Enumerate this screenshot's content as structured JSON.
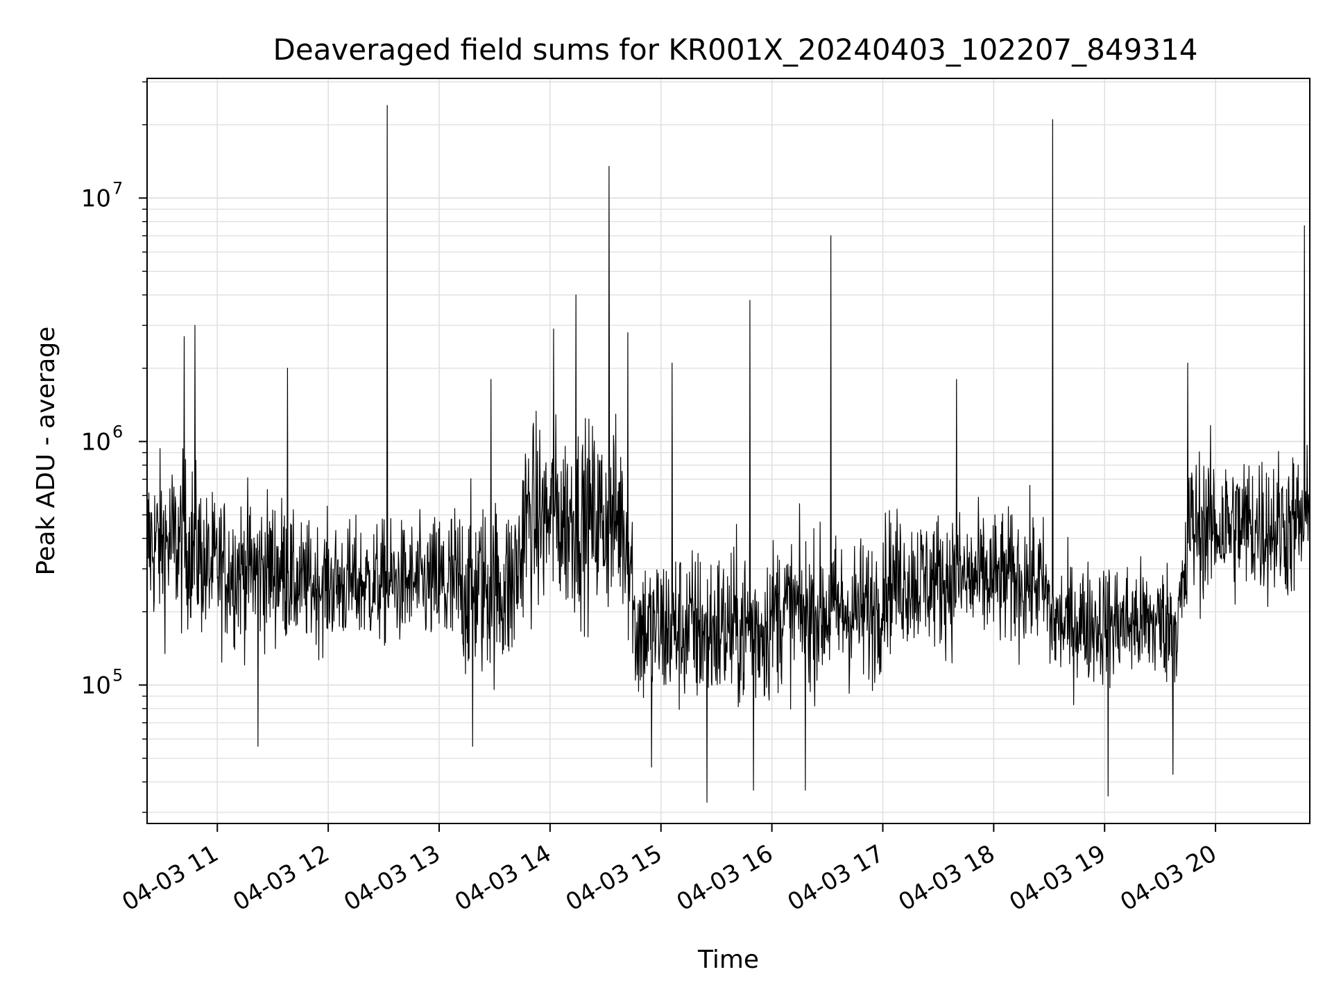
{
  "chart_data": {
    "type": "line",
    "title": "Deaveraged field sums for KR001X_20240403_102207_849314",
    "xlabel": "Time",
    "ylabel": "Peak ADU - average",
    "x_range": [
      "04-03 10:22",
      "04-03 20:51"
    ],
    "x_ticks": [
      "04-03 11",
      "04-03 12",
      "04-03 13",
      "04-03 14",
      "04-03 15",
      "04-03 16",
      "04-03 17",
      "04-03 18",
      "04-03 19",
      "04-03 20"
    ],
    "y_scale": "log",
    "y_range": [
      27000,
      31000000
    ],
    "y_ticks": [
      {
        "base": "10",
        "exp": "5",
        "value": 100000
      },
      {
        "base": "10",
        "exp": "6",
        "value": 1000000
      },
      {
        "base": "10",
        "exp": "7",
        "value": 10000000
      }
    ],
    "grid": true,
    "line_color": "#000000",
    "segments": [
      {
        "start": "04-03 10:22",
        "end": "04-03 10:52",
        "level": 380000,
        "spread": 0.62
      },
      {
        "start": "04-03 10:52",
        "end": "04-03 11:40",
        "level": 300000,
        "spread": 0.55
      },
      {
        "start": "04-03 11:40",
        "end": "04-03 13:00",
        "level": 260000,
        "spread": 0.45
      },
      {
        "start": "04-03 13:00",
        "end": "04-03 13:45",
        "level": 250000,
        "spread": 0.65
      },
      {
        "start": "04-03 13:45",
        "end": "04-03 14:45",
        "level": 480000,
        "spread": 0.7
      },
      {
        "start": "04-03 14:45",
        "end": "04-03 16:00",
        "level": 170000,
        "spread": 0.6
      },
      {
        "start": "04-03 16:00",
        "end": "04-03 17:00",
        "level": 200000,
        "spread": 0.55
      },
      {
        "start": "04-03 17:00",
        "end": "04-03 18:30",
        "level": 270000,
        "spread": 0.5
      },
      {
        "start": "04-03 18:30",
        "end": "04-03 19:45",
        "level": 180000,
        "spread": 0.45
      },
      {
        "start": "04-03 19:45",
        "end": "04-03 20:51",
        "level": 450000,
        "spread": 0.55
      }
    ],
    "spikes": [
      {
        "x": "04-03 10:42",
        "y": 2700000
      },
      {
        "x": "04-03 10:48",
        "y": 3000000
      },
      {
        "x": "04-03 11:38",
        "y": 2000000
      },
      {
        "x": "04-03 12:32",
        "y": 24000000
      },
      {
        "x": "04-03 13:28",
        "y": 1800000
      },
      {
        "x": "04-03 14:02",
        "y": 2900000
      },
      {
        "x": "04-03 14:14",
        "y": 4000000
      },
      {
        "x": "04-03 14:32",
        "y": 13500000
      },
      {
        "x": "04-03 14:42",
        "y": 2800000
      },
      {
        "x": "04-03 15:06",
        "y": 2100000
      },
      {
        "x": "04-03 15:48",
        "y": 3800000
      },
      {
        "x": "04-03 16:32",
        "y": 7000000
      },
      {
        "x": "04-03 17:40",
        "y": 1800000
      },
      {
        "x": "04-03 18:32",
        "y": 21000000
      },
      {
        "x": "04-03 19:45",
        "y": 2100000
      },
      {
        "x": "04-03 20:48",
        "y": 7700000
      }
    ],
    "dips": [
      {
        "x": "04-03 11:22",
        "y": 56000
      },
      {
        "x": "04-03 13:18",
        "y": 56000
      },
      {
        "x": "04-03 14:55",
        "y": 46000
      },
      {
        "x": "04-03 15:25",
        "y": 33000
      },
      {
        "x": "04-03 15:50",
        "y": 37000
      },
      {
        "x": "04-03 16:18",
        "y": 37000
      },
      {
        "x": "04-03 19:02",
        "y": 35000
      },
      {
        "x": "04-03 19:37",
        "y": 43000
      }
    ]
  }
}
